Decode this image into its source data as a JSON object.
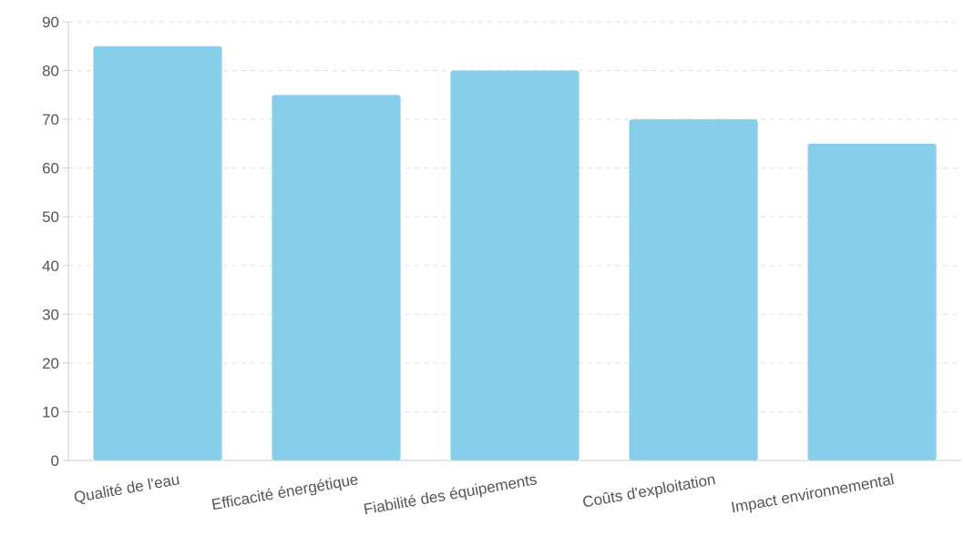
{
  "chart_data": {
    "type": "bar",
    "categories": [
      "Qualité de l'eau",
      "Efficacité énergétique",
      "Fiabilité des équipements",
      "Coûts d'exploitation",
      "Impact environnemental"
    ],
    "values": [
      85,
      75,
      80,
      70,
      65
    ],
    "ylim": [
      0,
      90
    ],
    "yticks": [
      0,
      10,
      20,
      30,
      40,
      50,
      60,
      70,
      80,
      90
    ],
    "grid": true,
    "bar_color": "#87ceeb",
    "grid_color": "#e0e0e0",
    "text_color": "#555555"
  }
}
